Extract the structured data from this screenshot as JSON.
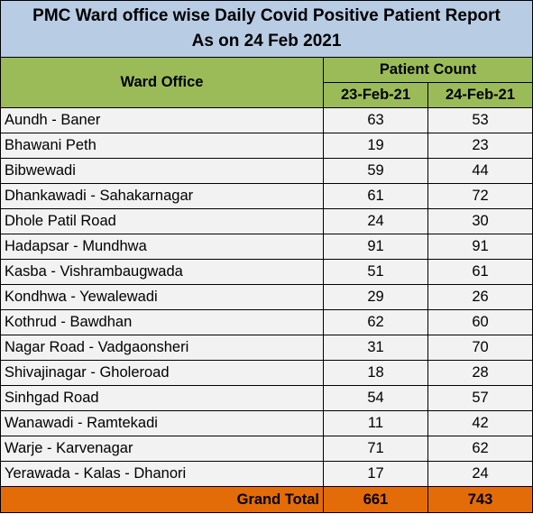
{
  "title_line1": "PMC Ward office wise Daily Covid Positive Patient Report",
  "title_line2": "As on 24 Feb 2021",
  "header": {
    "ward_office": "Ward Office",
    "patient_count": "Patient Count",
    "date1": "23-Feb-21",
    "date2": "24-Feb-21"
  },
  "rows": [
    {
      "ward": "Aundh - Baner",
      "d1": "63",
      "d2": "53"
    },
    {
      "ward": "Bhawani Peth",
      "d1": "19",
      "d2": "23"
    },
    {
      "ward": "Bibwewadi",
      "d1": "59",
      "d2": "44"
    },
    {
      "ward": "Dhankawadi - Sahakarnagar",
      "d1": "61",
      "d2": "72"
    },
    {
      "ward": "Dhole Patil Road",
      "d1": "24",
      "d2": "30"
    },
    {
      "ward": "Hadapsar - Mundhwa",
      "d1": "91",
      "d2": "91"
    },
    {
      "ward": "Kasba - Vishrambaugwada",
      "d1": "51",
      "d2": "61"
    },
    {
      "ward": "Kondhwa - Yewalewadi",
      "d1": "29",
      "d2": "26"
    },
    {
      "ward": "Kothrud - Bawdhan",
      "d1": "62",
      "d2": "60"
    },
    {
      "ward": "Nagar Road - Vadgaonsheri",
      "d1": "31",
      "d2": "70"
    },
    {
      "ward": "Shivajinagar - Gholeroad",
      "d1": "18",
      "d2": "28"
    },
    {
      "ward": "Sinhgad Road",
      "d1": "54",
      "d2": "57"
    },
    {
      "ward": "Wanawadi - Ramtekadi",
      "d1": "11",
      "d2": "42"
    },
    {
      "ward": "Warje - Karvenagar",
      "d1": "71",
      "d2": "62"
    },
    {
      "ward": "Yerawada - Kalas - Dhanori",
      "d1": "17",
      "d2": "24"
    }
  ],
  "total": {
    "label": "Grand Total",
    "d1": "661",
    "d2": "743"
  },
  "colors": {
    "title_bg": "#b8cce4",
    "header_bg": "#9bbb59",
    "row_bg": "#f2f2f2",
    "total_bg": "#e36c09"
  }
}
